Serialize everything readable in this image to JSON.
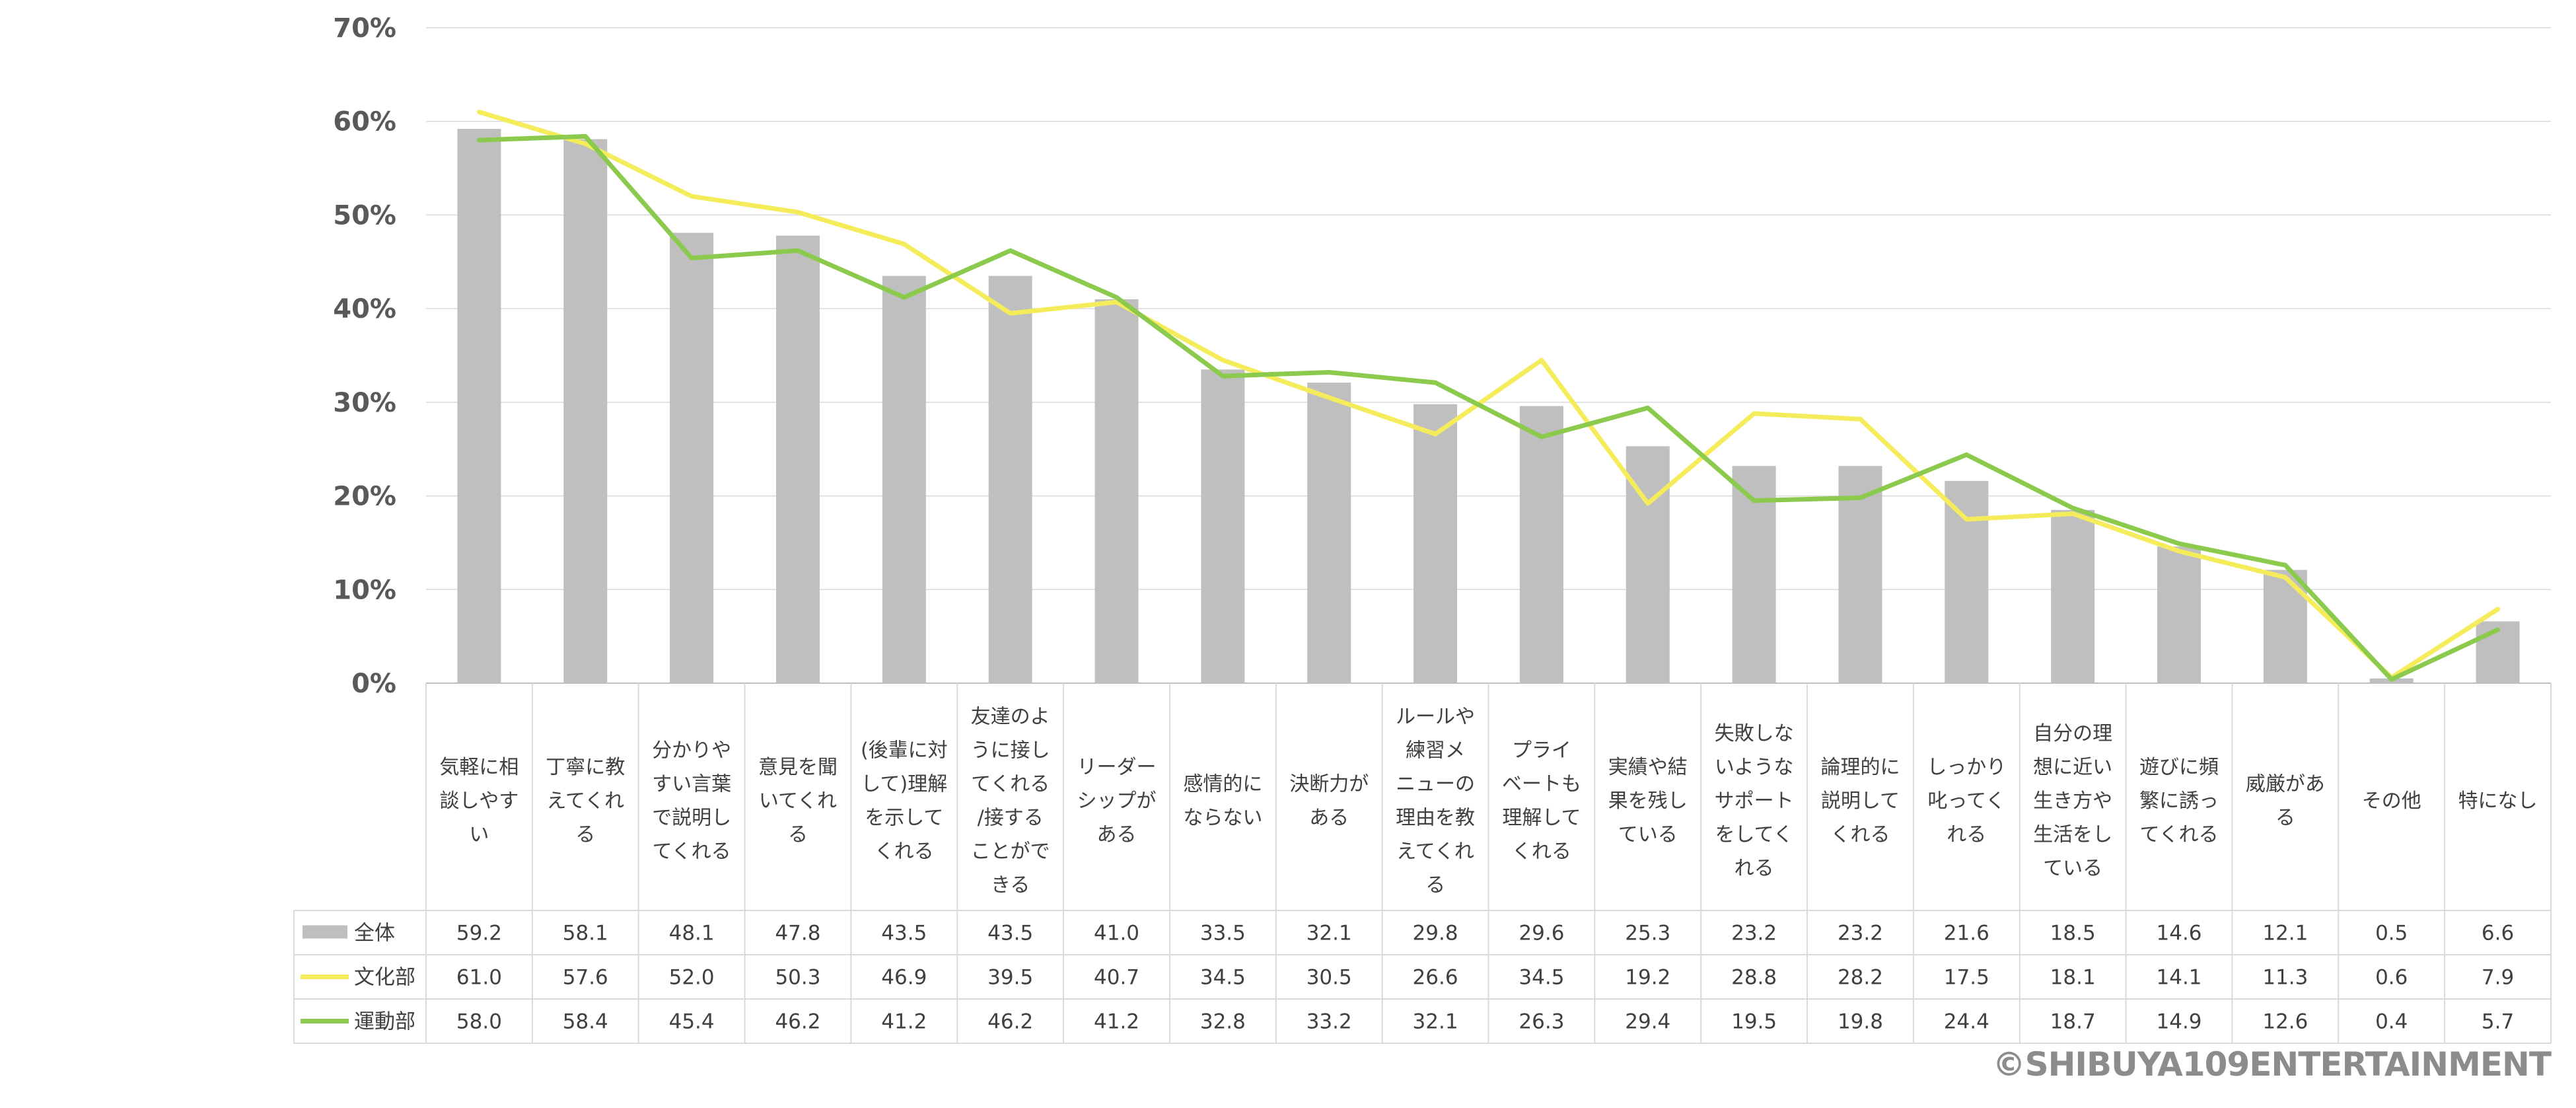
{
  "chart_data": {
    "type": "bar+line",
    "ylim": [
      0,
      70
    ],
    "ytick_labels": [
      "70%",
      "60%",
      "50%",
      "40%",
      "30%",
      "20%",
      "10%",
      "0%"
    ],
    "ytick_values": [
      70,
      60,
      50,
      40,
      30,
      20,
      10,
      0
    ],
    "categories": [
      [
        "気軽に相",
        "談しやす",
        "い"
      ],
      [
        "丁寧に教",
        "えてくれ",
        "る"
      ],
      [
        "分かりや",
        "すい言葉",
        "で説明し",
        "てくれる"
      ],
      [
        "意見を聞",
        "いてくれ",
        "る"
      ],
      [
        "(後輩に対",
        "して)理解",
        "を示して",
        "くれる"
      ],
      [
        "友達のよ",
        "うに接し",
        "てくれる",
        "/接する",
        "ことがで",
        "きる"
      ],
      [
        "リーダー",
        "シップが",
        "ある"
      ],
      [
        "感情的に",
        "ならない"
      ],
      [
        "決断力が",
        "ある"
      ],
      [
        "ルールや",
        "練習メ",
        "ニューの",
        "理由を教",
        "えてくれ",
        "る"
      ],
      [
        "プライ",
        "ベートも",
        "理解して",
        "くれる"
      ],
      [
        "実績や結",
        "果を残し",
        "ている"
      ],
      [
        "失敗しな",
        "いような",
        "サポート",
        "をしてく",
        "れる"
      ],
      [
        "論理的に",
        "説明して",
        "くれる"
      ],
      [
        "しっかり",
        "叱ってく",
        "れる"
      ],
      [
        "自分の理",
        "想に近い",
        "生き方や",
        "生活をし",
        "ている"
      ],
      [
        "遊びに頻",
        "繁に誘っ",
        "てくれる"
      ],
      [
        "威厳があ",
        "る"
      ],
      [
        "その他"
      ],
      [
        "特になし"
      ]
    ],
    "series": [
      {
        "name": "全体",
        "kind": "bar",
        "color": "#bfbfbf",
        "values": [
          59.2,
          58.1,
          48.1,
          47.8,
          43.5,
          43.5,
          41.0,
          33.5,
          32.1,
          29.8,
          29.6,
          25.3,
          23.2,
          23.2,
          21.6,
          18.5,
          14.6,
          12.1,
          0.5,
          6.6
        ],
        "labels": [
          "59.2",
          "58.1",
          "48.1",
          "47.8",
          "43.5",
          "43.5",
          "41.0",
          "33.5",
          "32.1",
          "29.8",
          "29.6",
          "25.3",
          "23.2",
          "23.2",
          "21.6",
          "18.5",
          "14.6",
          "12.1",
          "0.5",
          "6.6"
        ]
      },
      {
        "name": "文化部",
        "kind": "line",
        "color": "#f5ec5b",
        "values": [
          61.0,
          57.6,
          52.0,
          50.3,
          46.9,
          39.5,
          40.7,
          34.5,
          30.5,
          26.6,
          34.5,
          19.2,
          28.8,
          28.2,
          17.5,
          18.1,
          14.1,
          11.3,
          0.6,
          7.9
        ],
        "labels": [
          "61.0",
          "57.6",
          "52.0",
          "50.3",
          "46.9",
          "39.5",
          "40.7",
          "34.5",
          "30.5",
          "26.6",
          "34.5",
          "19.2",
          "28.8",
          "28.2",
          "17.5",
          "18.1",
          "14.1",
          "11.3",
          "0.6",
          "7.9"
        ]
      },
      {
        "name": "運動部",
        "kind": "line",
        "color": "#8cca4e",
        "values": [
          58.0,
          58.4,
          45.4,
          46.2,
          41.2,
          46.2,
          41.2,
          32.8,
          33.2,
          32.1,
          26.3,
          29.4,
          19.5,
          19.8,
          24.4,
          18.7,
          14.9,
          12.6,
          0.4,
          5.7
        ],
        "labels": [
          "58.0",
          "58.4",
          "45.4",
          "46.2",
          "41.2",
          "46.2",
          "41.2",
          "32.8",
          "33.2",
          "32.1",
          "26.3",
          "29.4",
          "19.5",
          "19.8",
          "24.4",
          "18.7",
          "14.9",
          "12.6",
          "0.4",
          "5.7"
        ]
      }
    ],
    "gridlines": true,
    "legend": "data-table-left"
  },
  "copyright": "©SHIBUYA109ENTERTAINMENT"
}
